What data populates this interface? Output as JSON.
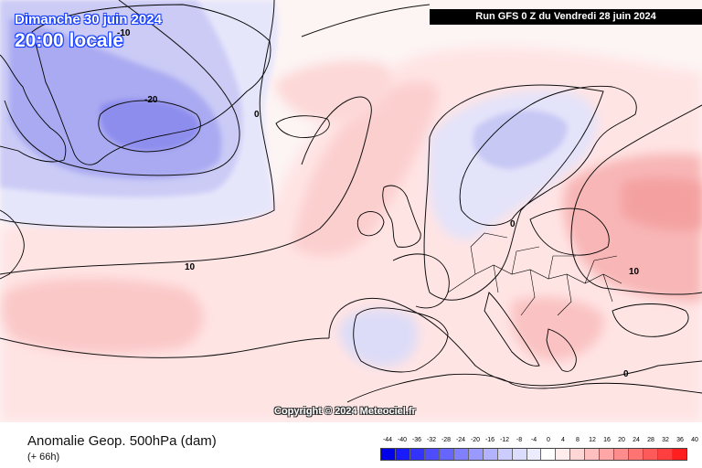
{
  "title": {
    "date": "Dimanche 30 juin 2024",
    "time": "20:00 locale"
  },
  "run_label": "Run GFS 0 Z du Vendredi 28 juin 2024",
  "copyright": "Copyright © 2024 Meteociel.fr",
  "footer": {
    "title": "Anomalie Geop. 500hPa (dam)",
    "subtitle": "(+ 66h)"
  },
  "contour_labels": {
    "label_a": "-10",
    "label_b": "-20",
    "label_c": "0",
    "label_d": "10",
    "label_e": "0",
    "label_f": "10",
    "label_g": "0"
  },
  "legend": {
    "labels": [
      "-44",
      "-40",
      "-36",
      "-32",
      "-28",
      "-24",
      "-20",
      "-16",
      "-12",
      "-8",
      "-4",
      "0",
      "4",
      "8",
      "12",
      "16",
      "20",
      "24",
      "28",
      "32",
      "36",
      "40"
    ],
    "colors": [
      "#0000e8",
      "#1a1aff",
      "#3333ff",
      "#4d4dff",
      "#6666ff",
      "#7f7fff",
      "#9999ff",
      "#b2b2ff",
      "#ccccff",
      "#dcdcff",
      "#ececff",
      "#ffffff",
      "#ffecec",
      "#ffd6d6",
      "#ffbfbf",
      "#ffa6a6",
      "#ff8c8c",
      "#ff7373",
      "#ff5959",
      "#ff3f3f",
      "#ff1f1f"
    ]
  },
  "colors": {
    "land_outline": "#000000",
    "contour": "#111111"
  }
}
